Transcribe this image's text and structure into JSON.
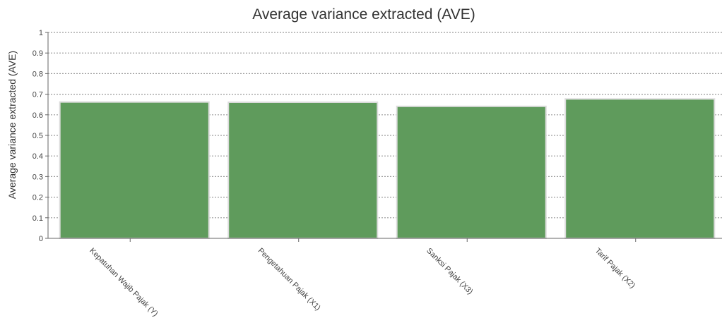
{
  "chart_data": {
    "type": "bar",
    "title": "Average variance extracted (AVE)",
    "xlabel": "",
    "ylabel": "Average variance extracted (AVE)",
    "categories": [
      "Kepatuhan Wajib Pajak (Y)",
      "Pengetahuan Pajak (X1)",
      "Sanksi Pajak (X3)",
      "Tarif Pajak (X2)"
    ],
    "values": [
      0.662,
      0.661,
      0.641,
      0.677
    ],
    "ylim": [
      0,
      1
    ],
    "yticks": [
      "0",
      "0.1",
      "0.2",
      "0.3",
      "0.4",
      "0.5",
      "0.6",
      "0.7",
      "0.8",
      "0.9",
      "1"
    ],
    "grid": true,
    "legend": "none",
    "colors": {
      "bar": "#5f9b5c",
      "bar_edge": "#ffffff",
      "grid": "#9a9a9a",
      "axis": "#666666",
      "text": "#333333"
    }
  }
}
